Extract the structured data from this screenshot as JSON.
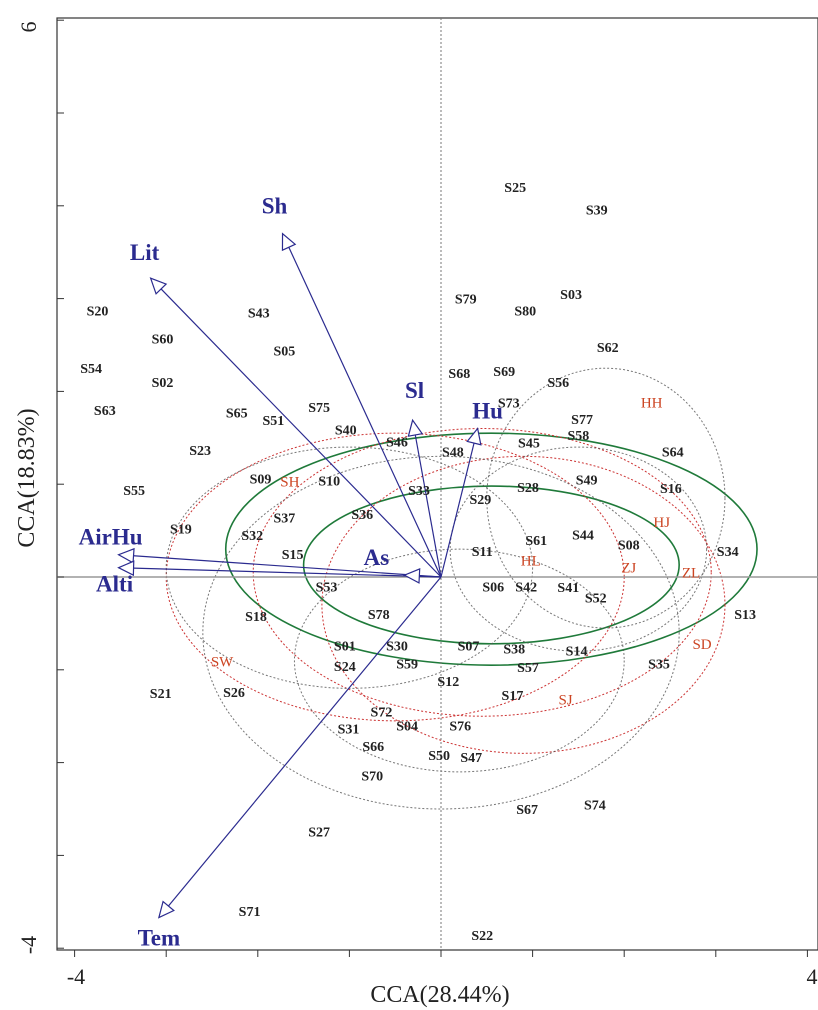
{
  "chart_data": {
    "type": "scatter",
    "title": "",
    "xlabel": "CCA(28.44%)",
    "ylabel": "CCA(18.83%)",
    "xlim": [
      -4,
      4
    ],
    "ylim": [
      -4,
      6
    ],
    "xticks": [
      "-4",
      "4"
    ],
    "yticks": [
      "6",
      "-4"
    ],
    "grid": false,
    "reference_lines": {
      "x": 0,
      "y": 0
    },
    "colors": {
      "site_text": "#222222",
      "group_text": "#cc4422",
      "vector": "#2b2b8f",
      "ellipse_green": "#1f7a3a",
      "ellipse_red": "#cc3333",
      "ellipse_grey": "#555555"
    },
    "sites": [
      {
        "label": "S25",
        "x": 0.81,
        "y": 4.2
      },
      {
        "label": "S39",
        "x": 1.7,
        "y": 3.96
      },
      {
        "label": "S03",
        "x": 1.42,
        "y": 3.05
      },
      {
        "label": "S79",
        "x": 0.27,
        "y": 3.0
      },
      {
        "label": "S80",
        "x": 0.92,
        "y": 2.87
      },
      {
        "label": "S20",
        "x": -3.75,
        "y": 2.87
      },
      {
        "label": "S43",
        "x": -1.99,
        "y": 2.85
      },
      {
        "label": "S60",
        "x": -3.04,
        "y": 2.57
      },
      {
        "label": "S62",
        "x": 1.82,
        "y": 2.48
      },
      {
        "label": "S05",
        "x": -1.71,
        "y": 2.44
      },
      {
        "label": "S68",
        "x": 0.2,
        "y": 2.2
      },
      {
        "label": "S69",
        "x": 0.69,
        "y": 2.22
      },
      {
        "label": "S54",
        "x": -3.82,
        "y": 2.25
      },
      {
        "label": "S02",
        "x": -3.04,
        "y": 2.1
      },
      {
        "label": "S56",
        "x": 1.28,
        "y": 2.1
      },
      {
        "label": "S73",
        "x": 0.74,
        "y": 1.88
      },
      {
        "label": "S75",
        "x": -1.33,
        "y": 1.83
      },
      {
        "label": "S63",
        "x": -3.67,
        "y": 1.8
      },
      {
        "label": "S65",
        "x": -2.23,
        "y": 1.77
      },
      {
        "label": "S51",
        "x": -1.83,
        "y": 1.69
      },
      {
        "label": "S77",
        "x": 1.54,
        "y": 1.7
      },
      {
        "label": "S58",
        "x": 1.5,
        "y": 1.53
      },
      {
        "label": "S40",
        "x": -1.04,
        "y": 1.59
      },
      {
        "label": "S45",
        "x": 0.96,
        "y": 1.45
      },
      {
        "label": "S46",
        "x": -0.48,
        "y": 1.46
      },
      {
        "label": "S48",
        "x": 0.13,
        "y": 1.35
      },
      {
        "label": "S23",
        "x": -2.63,
        "y": 1.37
      },
      {
        "label": "S64",
        "x": 2.53,
        "y": 1.35
      },
      {
        "label": "S09",
        "x": -1.97,
        "y": 1.06
      },
      {
        "label": "S10",
        "x": -1.22,
        "y": 1.04
      },
      {
        "label": "S49",
        "x": 1.59,
        "y": 1.05
      },
      {
        "label": "S28",
        "x": 0.95,
        "y": 0.97
      },
      {
        "label": "S16",
        "x": 2.51,
        "y": 0.96
      },
      {
        "label": "S55",
        "x": -3.35,
        "y": 0.94
      },
      {
        "label": "S33",
        "x": -0.24,
        "y": 0.94
      },
      {
        "label": "S29",
        "x": 0.43,
        "y": 0.84
      },
      {
        "label": "S36",
        "x": -0.86,
        "y": 0.68
      },
      {
        "label": "S37",
        "x": -1.71,
        "y": 0.64
      },
      {
        "label": "S19",
        "x": -2.84,
        "y": 0.52
      },
      {
        "label": "S44",
        "x": 1.55,
        "y": 0.46
      },
      {
        "label": "S32",
        "x": -2.06,
        "y": 0.45
      },
      {
        "label": "S61",
        "x": 1.04,
        "y": 0.4
      },
      {
        "label": "S08",
        "x": 2.05,
        "y": 0.35
      },
      {
        "label": "S34",
        "x": 3.13,
        "y": 0.28
      },
      {
        "label": "S11",
        "x": 0.45,
        "y": 0.28
      },
      {
        "label": "S15",
        "x": -1.62,
        "y": 0.25
      },
      {
        "label": "S06",
        "x": 0.57,
        "y": -0.1
      },
      {
        "label": "S42",
        "x": 0.93,
        "y": -0.1
      },
      {
        "label": "S41",
        "x": 1.39,
        "y": -0.11
      },
      {
        "label": "S53",
        "x": -1.25,
        "y": -0.1
      },
      {
        "label": "S52",
        "x": 1.69,
        "y": -0.22
      },
      {
        "label": "S18",
        "x": -2.02,
        "y": -0.42
      },
      {
        "label": "S78",
        "x": -0.68,
        "y": -0.4
      },
      {
        "label": "S13",
        "x": 3.32,
        "y": -0.4
      },
      {
        "label": "S01",
        "x": -1.05,
        "y": -0.74
      },
      {
        "label": "S30",
        "x": -0.48,
        "y": -0.74
      },
      {
        "label": "S07",
        "x": 0.3,
        "y": -0.74
      },
      {
        "label": "S38",
        "x": 0.8,
        "y": -0.77
      },
      {
        "label": "S14",
        "x": 1.48,
        "y": -0.79
      },
      {
        "label": "S35",
        "x": 2.38,
        "y": -0.93
      },
      {
        "label": "S24",
        "x": -1.05,
        "y": -0.96
      },
      {
        "label": "S59",
        "x": -0.37,
        "y": -0.93
      },
      {
        "label": "S57",
        "x": 0.95,
        "y": -0.97
      },
      {
        "label": "S12",
        "x": 0.08,
        "y": -1.12
      },
      {
        "label": "S21",
        "x": -3.06,
        "y": -1.25
      },
      {
        "label": "S26",
        "x": -2.26,
        "y": -1.24
      },
      {
        "label": "S17",
        "x": 0.78,
        "y": -1.27
      },
      {
        "label": "S72",
        "x": -0.65,
        "y": -1.45
      },
      {
        "label": "S04",
        "x": -0.37,
        "y": -1.6
      },
      {
        "label": "S76",
        "x": 0.21,
        "y": -1.6
      },
      {
        "label": "S31",
        "x": -1.01,
        "y": -1.63
      },
      {
        "label": "S66",
        "x": -0.74,
        "y": -1.82
      },
      {
        "label": "S50",
        "x": -0.02,
        "y": -1.92
      },
      {
        "label": "S47",
        "x": 0.33,
        "y": -1.94
      },
      {
        "label": "S70",
        "x": -0.75,
        "y": -2.14
      },
      {
        "label": "S67",
        "x": 0.94,
        "y": -2.5
      },
      {
        "label": "S74",
        "x": 1.68,
        "y": -2.45
      },
      {
        "label": "S27",
        "x": -1.33,
        "y": -2.74
      },
      {
        "label": "S71",
        "x": -2.09,
        "y": -3.6
      },
      {
        "label": "S22",
        "x": 0.45,
        "y": -3.86
      }
    ],
    "groups": [
      {
        "label": "HH",
        "x": 2.3,
        "y": 1.88
      },
      {
        "label": "SH",
        "x": -1.65,
        "y": 1.03
      },
      {
        "label": "HJ",
        "x": 2.41,
        "y": 0.59
      },
      {
        "label": "ZJ",
        "x": 2.05,
        "y": 0.1
      },
      {
        "label": "ZL",
        "x": 2.73,
        "y": 0.05
      },
      {
        "label": "HL",
        "x": 0.98,
        "y": 0.18
      },
      {
        "label": "SD",
        "x": 2.85,
        "y": -0.72
      },
      {
        "label": "SW",
        "x": -2.39,
        "y": -0.91
      },
      {
        "label": "SJ",
        "x": 1.36,
        "y": -1.32
      }
    ],
    "vectors": [
      {
        "label": "Sh",
        "x": -1.73,
        "y": 3.7
      },
      {
        "label": "Lit",
        "x": -3.17,
        "y": 3.22
      },
      {
        "label": "Sl",
        "x": -0.31,
        "y": 1.69
      },
      {
        "label": "Hu",
        "x": 0.4,
        "y": 1.6
      },
      {
        "label": "AirHu",
        "x": -3.52,
        "y": 0.24
      },
      {
        "label": "Alti",
        "x": -3.52,
        "y": 0.1
      },
      {
        "label": "As",
        "x": -0.4,
        "y": 0.02
      },
      {
        "label": "Tem",
        "x": -3.08,
        "y": -3.67
      }
    ],
    "ellipses": [
      {
        "cx": 0.55,
        "cy": 0.3,
        "rx": 2.9,
        "ry": 1.25,
        "color": "green"
      },
      {
        "cx": 0.55,
        "cy": 0.13,
        "rx": 2.05,
        "ry": 0.85,
        "color": "green"
      },
      {
        "cx": 0.45,
        "cy": 0.05,
        "rx": 2.5,
        "ry": 1.55,
        "color": "red"
      },
      {
        "cx": 0.9,
        "cy": -0.3,
        "rx": 2.2,
        "ry": 1.6,
        "color": "red"
      },
      {
        "cx": -0.5,
        "cy": 0.0,
        "rx": 2.5,
        "ry": 1.55,
        "color": "red"
      },
      {
        "cx": 1.8,
        "cy": 0.85,
        "rx": 1.3,
        "ry": 1.4,
        "color": "grey"
      },
      {
        "cx": -1.0,
        "cy": 0.1,
        "rx": 2.0,
        "ry": 1.3,
        "color": "grey"
      },
      {
        "cx": 0.0,
        "cy": -0.6,
        "rx": 2.6,
        "ry": 1.9,
        "color": "grey"
      },
      {
        "cx": 1.5,
        "cy": 0.3,
        "rx": 1.4,
        "ry": 1.1,
        "color": "grey"
      },
      {
        "cx": 0.2,
        "cy": -0.9,
        "rx": 1.8,
        "ry": 1.2,
        "color": "grey"
      }
    ]
  }
}
